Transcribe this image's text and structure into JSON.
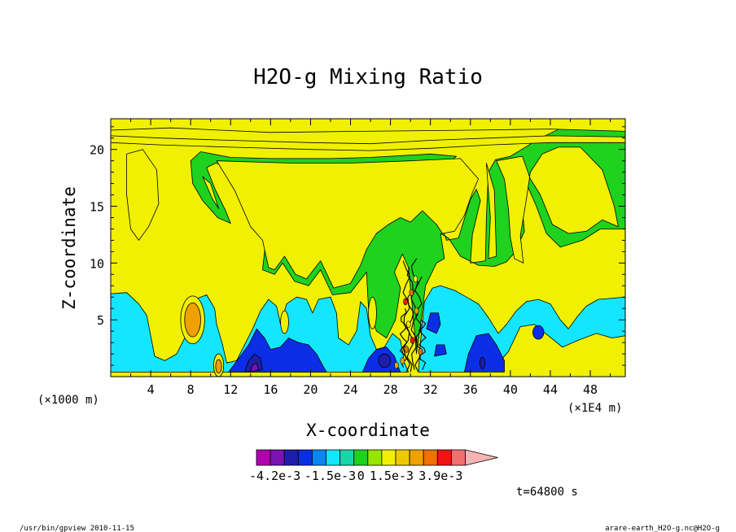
{
  "chart_data": {
    "type": "heatmap",
    "title": "H2O-g Mixing Ratio",
    "xlabel": "X-coordinate",
    "ylabel": "Z-coordinate",
    "x_unit_left": "(×1000 m)",
    "x_unit_right": "(×1E4 m)",
    "xlim": [
      0,
      51.5
    ],
    "ylim": [
      0,
      22.7
    ],
    "x_ticks": [
      4,
      8,
      12,
      16,
      20,
      24,
      28,
      32,
      36,
      40,
      44,
      48
    ],
    "x_tick_labels": [
      "4",
      "8",
      "12",
      "16",
      "20",
      "24",
      "28",
      "32",
      "36",
      "40",
      "44",
      "48"
    ],
    "y_ticks": [
      5,
      10,
      15,
      20
    ],
    "y_tick_labels": [
      "5",
      "10",
      "15",
      "20"
    ],
    "colorbar": {
      "colors": [
        "#b000b0",
        "#7a12b4",
        "#1e1ea8",
        "#0a2ee6",
        "#0a86f0",
        "#14e6ff",
        "#18d6a8",
        "#1ed21e",
        "#96e600",
        "#f0f000",
        "#f0c800",
        "#f0a000",
        "#f07000",
        "#f01414",
        "#f07070",
        "#f8b4b4"
      ],
      "labels": [
        "-4.2e-3",
        "-1.5e-3",
        "0",
        "1.5e-3",
        "3.9e-3"
      ],
      "label_values": [
        -0.0042,
        -0.0015,
        0,
        0.0015,
        0.0039
      ]
    },
    "time_label": "t=64800 s",
    "grid": false,
    "legend": "colorbar-bottom"
  },
  "footer": {
    "left": "/usr/bin/gpview   2010-11-15",
    "right": "arare-earth_H2O-g.nc@H2O-g"
  },
  "colors": {
    "green": "#1ed21e",
    "yellow": "#f0f000",
    "cyan": "#14e6ff",
    "blue": "#0a2ee6",
    "darkblue": "#1e1ea8",
    "orange": "#f0a000",
    "purple": "#7a12b4"
  }
}
